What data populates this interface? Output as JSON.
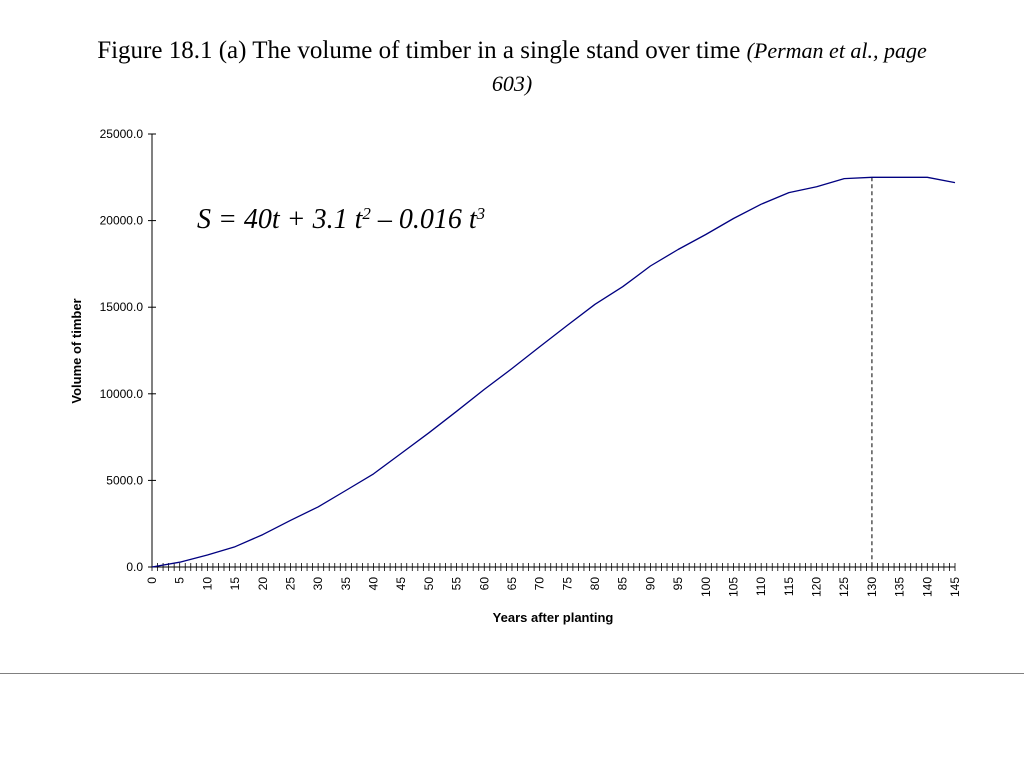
{
  "title": {
    "main": "Figure 18.1 (a) The volume of timber in a single stand over time",
    "citation": "(Perman et al., page 603)"
  },
  "chart_data": {
    "type": "line",
    "title": "",
    "xlabel": "Years after planting",
    "ylabel": "Volume of timber",
    "xlim": [
      0,
      145
    ],
    "ylim": [
      0,
      25000
    ],
    "x_tick_labels": [
      "0",
      "5",
      "10",
      "15",
      "20",
      "25",
      "30",
      "35",
      "40",
      "45",
      "50",
      "55",
      "60",
      "65",
      "70",
      "75",
      "80",
      "85",
      "90",
      "95",
      "100",
      "105",
      "110",
      "115",
      "120",
      "125",
      "130",
      "135",
      "140",
      "145"
    ],
    "y_tick_labels": [
      "0.0",
      "5000.0",
      "10000.0",
      "15000.0",
      "20000.0",
      "25000.0"
    ],
    "y_ticks": [
      0,
      5000,
      10000,
      15000,
      20000,
      25000
    ],
    "x_minor_tick_step": 1,
    "equation": {
      "lhs": "S = 40t + 3.1 t",
      "exp1": "2",
      "mid": " – 0.016 t",
      "exp2": "3"
    },
    "reference_line_x": 130,
    "line_color": "#000080",
    "series": [
      {
        "x": [
          0,
          5,
          10,
          15,
          20,
          25,
          30,
          35,
          40,
          45,
          50,
          55,
          60,
          65,
          70,
          75,
          80,
          85,
          90,
          95,
          100,
          105,
          110,
          115,
          120,
          125,
          130,
          135,
          140,
          145
        ],
        "values": [
          0,
          276,
          694,
          1171,
          1872,
          2688,
          3468,
          4414,
          5376,
          6561,
          7750,
          8992,
          10256,
          11462,
          12712,
          13950,
          15168,
          16184,
          17376,
          18332,
          19200,
          20123,
          20944,
          21615,
          21949,
          22425,
          22500,
          22500,
          22500,
          22193
        ]
      }
    ]
  }
}
